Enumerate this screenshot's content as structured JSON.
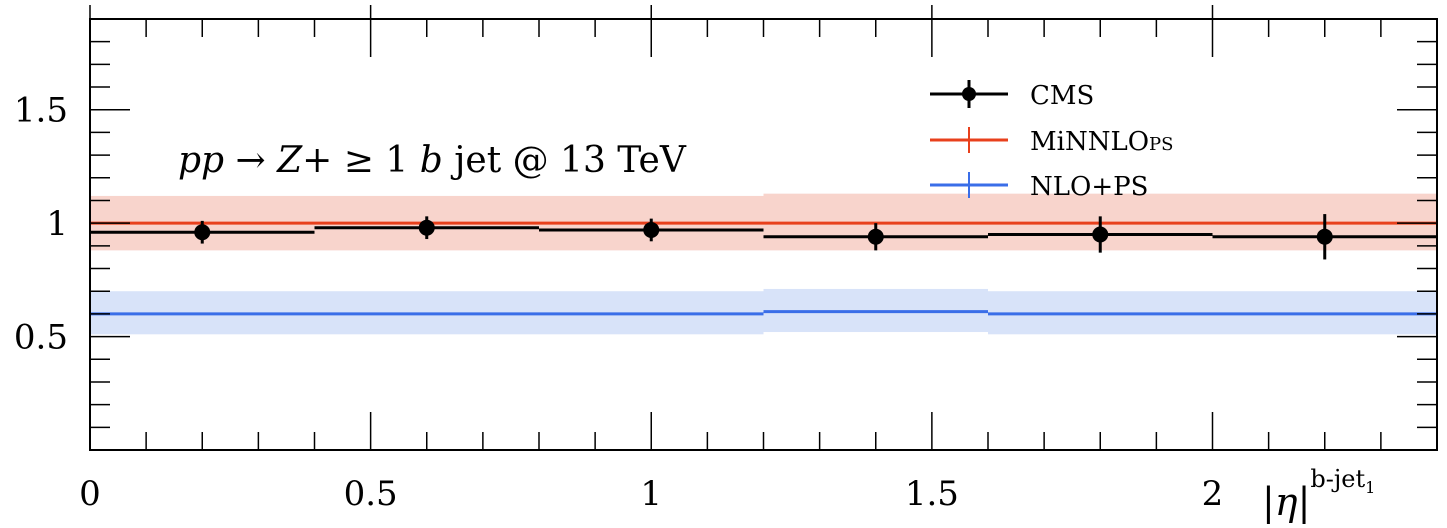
{
  "chart_data": {
    "type": "line",
    "annotation": {
      "parts": [
        "pp",
        " → ",
        "Z",
        "+ ≥ 1 ",
        "b",
        " jet @ 13 TeV"
      ]
    },
    "xlabel": {
      "main": "|η|",
      "sup_main": "b-jet",
      "sub": "1"
    },
    "xlim": [
      0,
      2.4
    ],
    "ylim": [
      0.0,
      1.9
    ],
    "x_ticks": [
      {
        "value": 0,
        "label": "0"
      },
      {
        "value": 0.5,
        "label": "0.5"
      },
      {
        "value": 1,
        "label": "1"
      },
      {
        "value": 1.5,
        "label": "1.5"
      },
      {
        "value": 2,
        "label": "2"
      }
    ],
    "y_ticks": [
      {
        "value": 0.5,
        "label": "0.5"
      },
      {
        "value": 1,
        "label": "1"
      },
      {
        "value": 1.5,
        "label": "1.5"
      }
    ],
    "bins": [
      [
        0,
        0.4
      ],
      [
        0.4,
        0.8
      ],
      [
        0.8,
        1.2
      ],
      [
        1.2,
        1.6
      ],
      [
        1.6,
        2.0
      ],
      [
        2.0,
        2.4
      ]
    ],
    "series": [
      {
        "name": "CMS",
        "color": "#000000",
        "values": [
          0.96,
          0.98,
          0.97,
          0.94,
          0.95,
          0.94
        ],
        "err": [
          0.05,
          0.05,
          0.05,
          0.06,
          0.08,
          0.1
        ]
      },
      {
        "name": "MiNNLO",
        "name_sub": "PS",
        "color": "#e8401c",
        "band_color": "#f8d4cc",
        "values": [
          1.0,
          1.0,
          1.0,
          1.0,
          1.0,
          1.0
        ],
        "band": [
          [
            0.88,
            1.12
          ],
          [
            0.88,
            1.12
          ],
          [
            0.88,
            1.12
          ],
          [
            0.88,
            1.13
          ],
          [
            0.88,
            1.13
          ],
          [
            0.88,
            1.13
          ]
        ]
      },
      {
        "name": "NLO+PS",
        "color": "#3a6ee8",
        "band_color": "#d8e3f9",
        "values": [
          0.6,
          0.6,
          0.6,
          0.61,
          0.6,
          0.6
        ],
        "band": [
          [
            0.51,
            0.7
          ],
          [
            0.51,
            0.7
          ],
          [
            0.51,
            0.7
          ],
          [
            0.52,
            0.71
          ],
          [
            0.51,
            0.7
          ],
          [
            0.51,
            0.7
          ]
        ]
      }
    ],
    "legend_position": "top-right",
    "grid": false
  }
}
